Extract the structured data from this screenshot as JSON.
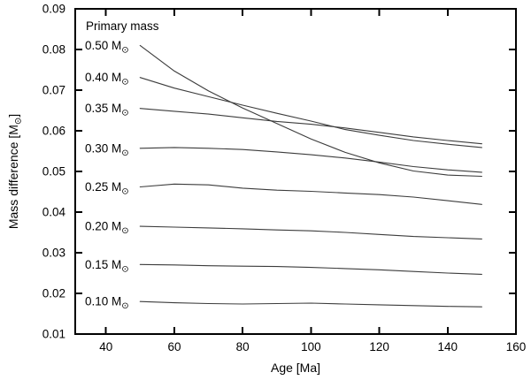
{
  "figure": {
    "background": "#ffffff",
    "axis_color": "#000000",
    "curve_color": "#3c3c3c",
    "text_color": "#000000"
  },
  "chart_data": {
    "type": "line",
    "title": "",
    "xlabel": "Age [Ma]",
    "ylabel": "Mass difference [M⊙]",
    "solar_symbol": "⊙",
    "xlim": [
      31,
      160
    ],
    "ylim": [
      0.01,
      0.09
    ],
    "x_ticks": [
      40,
      60,
      80,
      100,
      120,
      140,
      160
    ],
    "x_tick_labels": [
      "40",
      "60",
      "80",
      "100",
      "120",
      "140",
      "160"
    ],
    "y_ticks": [
      0.01,
      0.02,
      0.03,
      0.04,
      0.05,
      0.06,
      0.07,
      0.08,
      0.09
    ],
    "y_tick_labels": [
      "0.01",
      "0.02",
      "0.03",
      "0.04",
      "0.05",
      "0.06",
      "0.07",
      "0.08",
      "0.09"
    ],
    "grid": false,
    "legend_title": "Primary mass",
    "legend_position": "inside-top-left",
    "line_color": "#3c3c3c",
    "x": [
      50,
      60,
      70,
      80,
      90,
      100,
      110,
      120,
      130,
      140,
      150
    ],
    "series": [
      {
        "name": "0.50 M⊙",
        "values": [
          0.081,
          0.0747,
          0.0698,
          0.0656,
          0.0618,
          0.058,
          0.0547,
          0.0521,
          0.0501,
          0.0491,
          0.0488
        ]
      },
      {
        "name": "0.40 M⊙",
        "values": [
          0.0731,
          0.0705,
          0.0684,
          0.0663,
          0.0643,
          0.0624,
          0.0603,
          0.0589,
          0.0576,
          0.0567,
          0.0559
        ]
      },
      {
        "name": "0.35 M⊙",
        "values": [
          0.0655,
          0.0648,
          0.0641,
          0.0632,
          0.0623,
          0.0616,
          0.0607,
          0.0596,
          0.0585,
          0.0576,
          0.0568
        ]
      },
      {
        "name": "0.30 M⊙",
        "values": [
          0.0557,
          0.0559,
          0.0557,
          0.0554,
          0.0548,
          0.0541,
          0.0533,
          0.0523,
          0.0512,
          0.0504,
          0.0498
        ]
      },
      {
        "name": "0.25 M⊙",
        "values": [
          0.0462,
          0.0469,
          0.0467,
          0.0459,
          0.0454,
          0.0451,
          0.0447,
          0.0443,
          0.0437,
          0.0428,
          0.0419
        ]
      },
      {
        "name": "0.20 M⊙",
        "values": [
          0.0365,
          0.0363,
          0.0361,
          0.0359,
          0.0356,
          0.0354,
          0.035,
          0.0345,
          0.034,
          0.0337,
          0.0334
        ]
      },
      {
        "name": "0.15 M⊙",
        "values": [
          0.0271,
          0.027,
          0.0268,
          0.0267,
          0.0266,
          0.0264,
          0.0261,
          0.0258,
          0.0254,
          0.025,
          0.0247
        ]
      },
      {
        "name": "0.10 M⊙",
        "values": [
          0.018,
          0.0177,
          0.0175,
          0.0174,
          0.0175,
          0.0176,
          0.0174,
          0.0172,
          0.017,
          0.0168,
          0.0167
        ]
      }
    ]
  }
}
